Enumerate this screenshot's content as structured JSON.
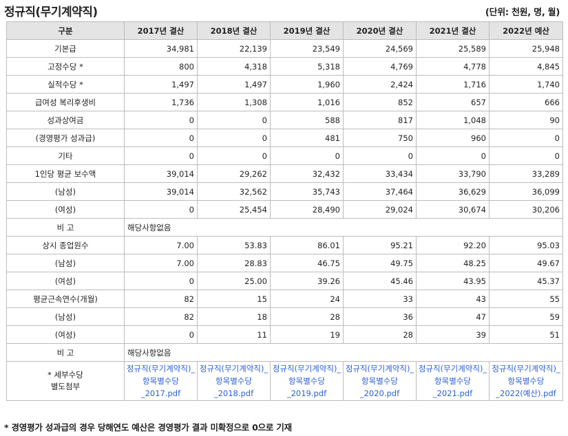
{
  "title": "정규직(무기계약직)",
  "unit": "(단위: 천원, 명, 월)",
  "columns": [
    "구분",
    "2017년 결산",
    "2018년 결산",
    "2019년 결산",
    "2020년 결산",
    "2021년 결산",
    "2022년 예산"
  ],
  "rows": [
    {
      "label": "기본급",
      "values": [
        "34,981",
        "22,139",
        "23,549",
        "24,569",
        "25,589",
        "25,948"
      ]
    },
    {
      "label": "고정수당 *",
      "values": [
        "800",
        "4,318",
        "5,318",
        "4,769",
        "4,778",
        "4,845"
      ]
    },
    {
      "label": "실적수당 *",
      "values": [
        "1,497",
        "1,497",
        "1,960",
        "2,424",
        "1,716",
        "1,740"
      ]
    },
    {
      "label": "급여성 복리후생비",
      "values": [
        "1,736",
        "1,308",
        "1,016",
        "852",
        "657",
        "666"
      ]
    },
    {
      "label": "성과상여금",
      "values": [
        "0",
        "0",
        "588",
        "817",
        "1,048",
        "90"
      ]
    },
    {
      "label": "(경영평가 성과급)",
      "values": [
        "0",
        "0",
        "481",
        "750",
        "960",
        "0"
      ]
    },
    {
      "label": "기타",
      "values": [
        "0",
        "0",
        "0",
        "0",
        "0",
        "0"
      ]
    },
    {
      "label": "1인당 평균 보수액",
      "values": [
        "39,014",
        "29,262",
        "32,432",
        "33,434",
        "33,790",
        "33,289"
      ]
    },
    {
      "label": "(남성)",
      "values": [
        "39,014",
        "32,562",
        "35,743",
        "37,464",
        "36,629",
        "36,099"
      ]
    },
    {
      "label": "(여성)",
      "values": [
        "0",
        "25,454",
        "28,490",
        "29,024",
        "30,674",
        "30,206"
      ]
    }
  ],
  "note1": {
    "label": "비 고",
    "text": "해당사항없음"
  },
  "rows2": [
    {
      "label": "상시 종업원수",
      "values": [
        "7.00",
        "53.83",
        "86.01",
        "95.21",
        "92.20",
        "95.03"
      ]
    },
    {
      "label": "(남성)",
      "values": [
        "7.00",
        "28.83",
        "46.75",
        "49.75",
        "48.25",
        "49.67"
      ]
    },
    {
      "label": "(여성)",
      "values": [
        "0",
        "25.00",
        "39.26",
        "45.46",
        "43.95",
        "45.37"
      ]
    },
    {
      "label": "평균근속연수(개월)",
      "values": [
        "82",
        "15",
        "24",
        "33",
        "43",
        "55"
      ]
    },
    {
      "label": "(남성)",
      "values": [
        "82",
        "18",
        "28",
        "36",
        "47",
        "59"
      ]
    },
    {
      "label": "(여성)",
      "values": [
        "0",
        "11",
        "19",
        "28",
        "39",
        "51"
      ]
    }
  ],
  "note2": {
    "label": "비 고",
    "text": "해당사항없음"
  },
  "attachments": {
    "label_line1": "* 세부수당",
    "label_line2": "별도첨부",
    "files": [
      "정규직(무기계약직)_항목별수당_2017.pdf",
      "정규직(무기계약직)_항목별수당_2018.pdf",
      "정규직(무기계약직)_항목별수당_2019.pdf",
      "정규직(무기계약직)_항목별수당_2020.pdf",
      "정규직(무기계약직)_항목별수당_2021.pdf",
      "정규직(무기계약직)_항목별수당_2022(예산).pdf"
    ]
  },
  "footnote": "* 경영평가 성과급의 경우 당해연도 예산은 경영평가 결과 미확정으로 0으로 기재",
  "colors": {
    "header_bg": "#e4e4e4",
    "border": "#bcbcbc",
    "link": "#2b5fd8"
  }
}
